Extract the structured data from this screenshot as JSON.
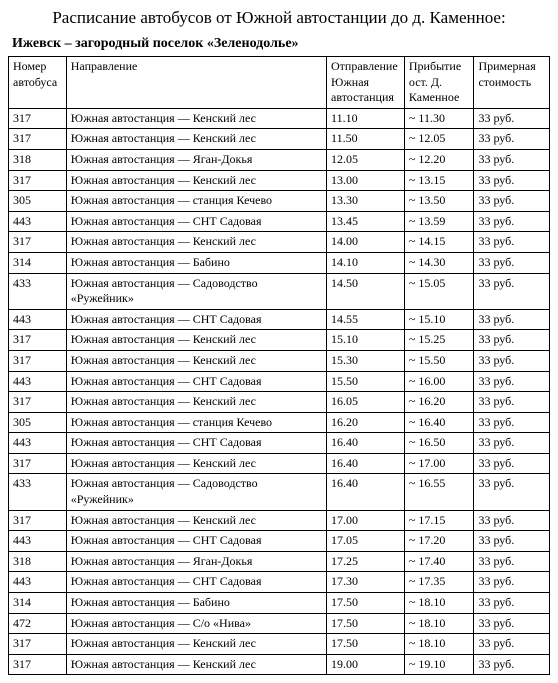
{
  "title": "Расписание автобусов от Южной автостанции до д. Каменное:",
  "subtitle": "Ижевск – загородный поселок «Зеленодолье»",
  "columns": [
    "Номер автобуса",
    "Направление",
    "Отправление Южная автостанция",
    "Прибытие ост. Д. Каменное",
    "Примерная стоимость"
  ],
  "rows": [
    [
      "317",
      "Южная автостанция — Кенский лес",
      "11.10",
      "~ 11.30",
      "33 руб."
    ],
    [
      "317",
      "Южная автостанция — Кенский лес",
      "11.50",
      "~ 12.05",
      "33 руб."
    ],
    [
      "318",
      "Южная автостанция — Яган-Докья",
      "12.05",
      "~ 12.20",
      "33 руб."
    ],
    [
      "317",
      "Южная автостанция — Кенский лес",
      "13.00",
      "~ 13.15",
      "33 руб."
    ],
    [
      "305",
      "Южная автостанция — станция Кечево",
      "13.30",
      "~ 13.50",
      "33 руб."
    ],
    [
      "443",
      "Южная автостанция — СНТ Садовая",
      "13.45",
      "~ 13.59",
      "33 руб."
    ],
    [
      "317",
      "Южная автостанция — Кенский лес",
      "14.00",
      "~ 14.15",
      "33 руб."
    ],
    [
      "314",
      "Южная автостанция — Бабино",
      "14.10",
      "~ 14.30",
      "33 руб."
    ],
    [
      "433",
      "Южная автостанция — Садоводство «Ружейник»",
      "14.50",
      "~ 15.05",
      "33 руб."
    ],
    [
      "443",
      "Южная автостанция — СНТ Садовая",
      "14.55",
      "~ 15.10",
      "33 руб."
    ],
    [
      "317",
      "Южная автостанция — Кенский лес",
      "15.10",
      "~ 15.25",
      "33 руб."
    ],
    [
      "317",
      "Южная автостанция — Кенский лес",
      "15.30",
      "~ 15.50",
      "33 руб."
    ],
    [
      "443",
      "Южная автостанция — СНТ Садовая",
      "15.50",
      "~ 16.00",
      "33 руб."
    ],
    [
      "317",
      "Южная автостанция — Кенский лес",
      "16.05",
      "~ 16.20",
      "33 руб."
    ],
    [
      "305",
      "Южная автостанция — станция Кечево",
      "16.20",
      "~ 16.40",
      "33 руб."
    ],
    [
      "443",
      "Южная автостанция — СНТ Садовая",
      "16.40",
      "~ 16.50",
      "33 руб."
    ],
    [
      "317",
      "Южная автостанция — Кенский лес",
      "16.40",
      "~ 17.00",
      "33 руб."
    ],
    [
      "433",
      "Южная автостанция — Садоводство «Ружейник»",
      "16.40",
      "~ 16.55",
      "33 руб."
    ],
    [
      "317",
      "Южная автостанция — Кенский лес",
      "17.00",
      "~ 17.15",
      "33 руб."
    ],
    [
      "443",
      "Южная автостанция — СНТ Садовая",
      "17.05",
      "~ 17.20",
      "33 руб."
    ],
    [
      "318",
      "Южная автостанция — Яган-Докья",
      "17.25",
      "~ 17.40",
      "33 руб."
    ],
    [
      "443",
      "Южная автостанция — СНТ Садовая",
      "17.30",
      "~ 17.35",
      "33 руб."
    ],
    [
      "314",
      "Южная автостанция — Бабино",
      "17.50",
      "~ 18.10",
      "33 руб."
    ],
    [
      "472",
      "Южная автостанция — С/о «Нива»",
      "17.50",
      "~ 18.10",
      "33 руб."
    ],
    [
      "317",
      "Южная автостанция — Кенский лес",
      "17.50",
      "~ 18.10",
      "33 руб."
    ],
    [
      "317",
      "Южная автостанция — Кенский лес",
      "19.00",
      "~ 19.10",
      "33 руб."
    ]
  ]
}
